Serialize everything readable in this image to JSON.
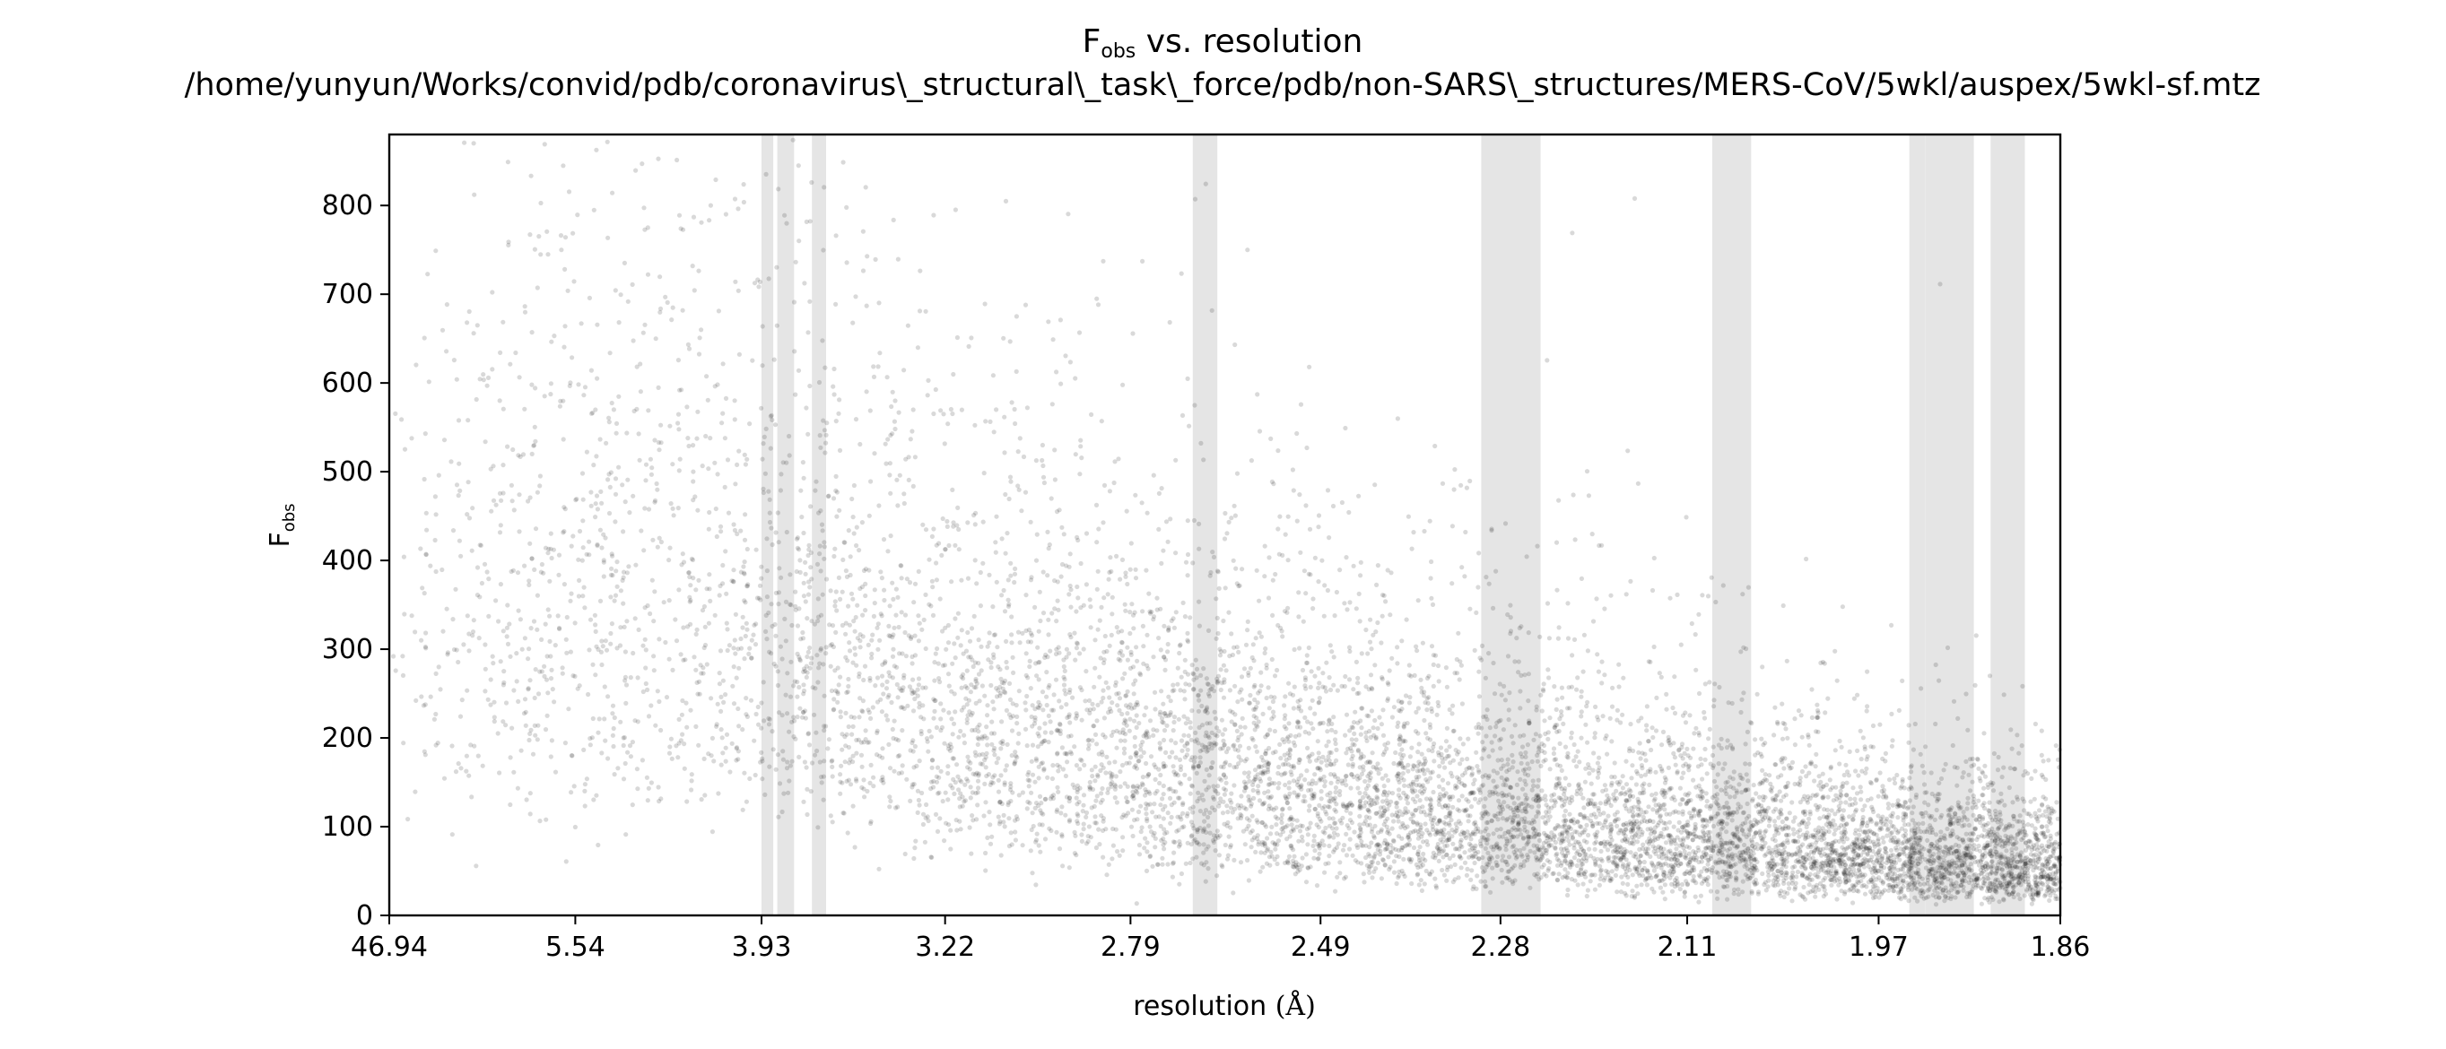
{
  "chart_data": {
    "type": "scatter",
    "title_main": "F",
    "title_sub": "obs",
    "title_rest": " vs. resolution",
    "subtitle": "/home/yunyun/Works/convid/pdb/coronavirus\\_structural\\_task\\_force/pdb/non-SARS\\_structures/MERS-CoV/5wkl/auspex/5wkl-sf.mtz",
    "xlabel": "resolution",
    "xlabel_unit": "(Å)",
    "ylabel_main": "F",
    "ylabel_sub": "obs",
    "x_scale": "1/d^2",
    "x_ticks": [
      46.94,
      5.54,
      3.93,
      3.22,
      2.79,
      2.49,
      2.28,
      2.11,
      1.97,
      1.86
    ],
    "x_tick_labels": [
      "46.94",
      "5.54",
      "3.93",
      "3.22",
      "2.79",
      "2.49",
      "2.28",
      "2.11",
      "1.97",
      "1.86"
    ],
    "ylim": [
      0,
      880
    ],
    "y_ticks": [
      0,
      100,
      200,
      300,
      400,
      500,
      600,
      700,
      800
    ],
    "y_tick_labels": [
      "0",
      "100",
      "200",
      "300",
      "400",
      "500",
      "600",
      "700",
      "800"
    ],
    "grid": false,
    "point_color": "#000000",
    "point_alpha": 0.15,
    "ice_ring_color": "#e5e5e5",
    "ice_ring_bands": [
      {
        "d_max": 3.93,
        "d_min": 3.87
      },
      {
        "d_max": 3.85,
        "d_min": 3.77
      },
      {
        "d_max": 3.69,
        "d_min": 3.63
      },
      {
        "d_max": 2.68,
        "d_min": 2.64
      },
      {
        "d_max": 2.3,
        "d_min": 2.24
      },
      {
        "d_max": 2.09,
        "d_min": 2.06
      },
      {
        "d_max": 1.95,
        "d_min": 1.94
      },
      {
        "d_max": 1.94,
        "d_min": 1.91
      },
      {
        "d_max": 1.9,
        "d_min": 1.88
      }
    ],
    "series": [
      {
        "points_description": "dense cloud of reflection amplitudes; mean Fobs decreases with resolution",
        "approx_mean_by_resolution": [
          {
            "d": 46.94,
            "mean": 420
          },
          {
            "d": 5.54,
            "mean": 420
          },
          {
            "d": 3.93,
            "mean": 400
          },
          {
            "d": 3.22,
            "mean": 280
          },
          {
            "d": 2.79,
            "mean": 210
          },
          {
            "d": 2.49,
            "mean": 160
          },
          {
            "d": 2.28,
            "mean": 130
          },
          {
            "d": 2.11,
            "mean": 105
          },
          {
            "d": 1.97,
            "mean": 80
          },
          {
            "d": 1.86,
            "mean": 65
          }
        ]
      }
    ]
  }
}
